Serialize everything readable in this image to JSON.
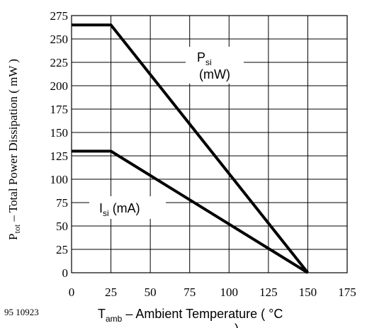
{
  "chart_data": {
    "type": "line",
    "figure_number": "95 10923",
    "xlabel": {
      "main": "T",
      "sub": "amb",
      "rest": " – Ambient Temperature ( °C",
      "suffix": ")"
    },
    "ylabel": {
      "main": "P",
      "sub": "tot",
      "rest": " – Total Power Dissipation ( mW )"
    },
    "xlim": [
      0,
      175
    ],
    "ylim": [
      0,
      275
    ],
    "xticks": [
      "0",
      "25",
      "50",
      "75",
      "100",
      "125",
      "150",
      "175"
    ],
    "yticks": [
      "0",
      "25",
      "50",
      "75",
      "100",
      "125",
      "150",
      "175",
      "200",
      "225",
      "250",
      "275"
    ],
    "grid": true,
    "series": [
      {
        "name": {
          "main": "P",
          "sub": "si",
          "line2": "(mW)"
        },
        "x": [
          0,
          25,
          150
        ],
        "y": [
          265,
          265,
          0
        ]
      },
      {
        "name": {
          "main": "I",
          "sub": "si",
          "rest": " (mA)"
        },
        "x": [
          0,
          25,
          150
        ],
        "y": [
          130,
          130,
          0
        ]
      }
    ]
  }
}
